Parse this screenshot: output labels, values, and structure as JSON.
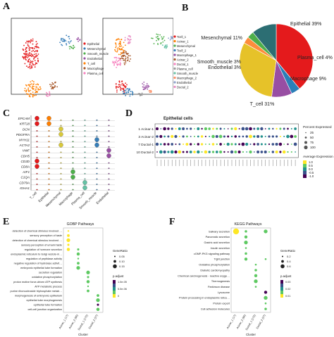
{
  "panel_labels": {
    "A": "A",
    "B": "B",
    "C": "C",
    "D": "D",
    "E": "E",
    "F": "F"
  },
  "panel_a": {
    "legend_left": [
      "Epithelial",
      "Mesenchymal",
      "Smooth_muscle",
      "Endothelial",
      "T_cell",
      "Macrophage",
      "Plasma_cell"
    ],
    "legend_right": [
      "Tcell_1",
      "Acinar_1",
      "Mesenchymal",
      "Tcell_2",
      "Macrophage_1",
      "Acinar_2",
      "Ductal_1",
      "Plasma_cell",
      "Smooth_muscle",
      "Macrophage_2",
      "Endothelial",
      "Ductal_2"
    ],
    "colors_left": [
      "#e41a1c",
      "#377eb8",
      "#4daf4a",
      "#984ea3",
      "#ff7f00",
      "#a65628",
      "#f781bf"
    ],
    "colors_right": [
      "#e41a1c",
      "#ff7f00",
      "#4daf4a",
      "#377eb8",
      "#984ea3",
      "#a65628",
      "#f781bf",
      "#999999",
      "#66c2a5",
      "#fc8d62",
      "#8da0cb",
      "#e78ac3"
    ]
  },
  "chart_data": [
    {
      "type": "pie",
      "panel": "B",
      "slices": [
        {
          "label": "Epithelial 39%",
          "value": 39,
          "color": "#e41a1c"
        },
        {
          "label": "Plasma_cell 4%",
          "value": 4,
          "color": "#2c7fb8"
        },
        {
          "label": "Macrophage 9%",
          "value": 9,
          "color": "#984ea3"
        },
        {
          "label": "T_cell 31%",
          "value": 31,
          "color": "#e6c229"
        },
        {
          "label": "Endothelial 3%",
          "value": 3,
          "color": "#fd8d3c"
        },
        {
          "label": "Smooth_muscle 3%",
          "value": 3,
          "color": "#4daf4a"
        },
        {
          "label": "Mesenchymal 11%",
          "value": 11,
          "color": "#2c6e73"
        }
      ]
    },
    {
      "type": "violin",
      "panel": "C",
      "genes": [
        "EPCAM",
        "KRT18",
        "DCN",
        "PDGFRA",
        "MYH11",
        "ACTA2",
        "VWF",
        "CDH5",
        "CD3D",
        "CD8A",
        "AIF1",
        "C1QA",
        "CD79A",
        "IGHA1"
      ],
      "categories": [
        "T_cell",
        "Epithelial",
        "Mesenchymal",
        "Macrophage",
        "Plasma_cell",
        "Smooth_muscle",
        "Endothelial"
      ],
      "colors": [
        "#e41a1c",
        "#ff7f00",
        "#d9c93a",
        "#4daf4a",
        "#66c2a5",
        "#377eb8",
        "#984ea3"
      ]
    },
    {
      "type": "dot",
      "panel": "D",
      "title": "Epithelial cells",
      "rows": [
        "1 Acinar-1",
        "3 Acinar-2",
        "7 Ductal-1",
        "10 Ductal-2"
      ],
      "size_legend_title": "Percent Expressed",
      "size_legend": [
        "25",
        "50",
        "75",
        "100"
      ],
      "color_legend_title": "Average Expression",
      "color_legend": [
        "1.0",
        "0.5",
        "0.0",
        "-0.5",
        "-1.0"
      ]
    },
    {
      "type": "dot",
      "panel": "E",
      "title": "GOBP Pathways",
      "xlabel": "Cluster",
      "clusters": [
        "Acinar_1 (17)",
        "Acinar_2 (65)",
        "Ductal_1 (172)",
        "Ductal_2 (27)"
      ],
      "pathways": [
        "detection of chemical stimulus involved in sensory perception of bitter taste",
        "sensory perception of taste",
        "detection of chemical stimulus involved in sensory perception of taste",
        "sensory perception of umami taste",
        "regulation of hormone secretion",
        "endoplasmic reticulum to Golgi vesicle-mediated transport",
        "regulation of peptidase activity",
        "negative regulation of hydrolase activity",
        "embryonic epithelial tube formation",
        "secretion regulation",
        "oxidative phosphorylation",
        "proton motive force-driven ATP synthesis",
        "ATP metabolic process",
        "purine ribonucleoside triphosphate metabolic process",
        "morphogenesis of embryonic epithelium",
        "epithelial tube morphogenesis",
        "epithelial tube formation",
        "cell-cell junction organization"
      ],
      "size_legend_title": "GeneRatio",
      "size_legend": [
        "0.05",
        "0.10",
        "0.15"
      ],
      "color_legend_title": "p.adjust",
      "color_legend": [
        "1.0e-05",
        "5.0e-06",
        "0"
      ]
    },
    {
      "type": "dot",
      "panel": "F",
      "title": "KEGG Pathways",
      "xlabel": "Cluster",
      "clusters": [
        "Acinar_1 (17)",
        "Acinar_2 (65)",
        "Ductal_1 (172)",
        "Ductal_2 (27)"
      ],
      "pathways": [
        "Salivary secretion",
        "Pancreatic secretion",
        "Gastric acid secretion",
        "Insulin secretion",
        "cGMP-PKG signaling pathway",
        "Tight junction",
        "Oxidative phosphorylation",
        "Diabetic cardiomyopathy",
        "Chemical carcinogenesis - reactive oxygen species",
        "Thermogenesis",
        "Parkinson disease",
        "Lysosome",
        "Protein processing in endoplasmic reticulum",
        "Protein export",
        "Cell adhesion molecules"
      ],
      "size_legend_title": "GeneRatio",
      "size_legend": [
        "0.2",
        "0.4",
        "0.6"
      ],
      "color_legend_title": "p.adjust",
      "color_legend": [
        "0.03",
        "0.02",
        "0.01"
      ]
    }
  ]
}
